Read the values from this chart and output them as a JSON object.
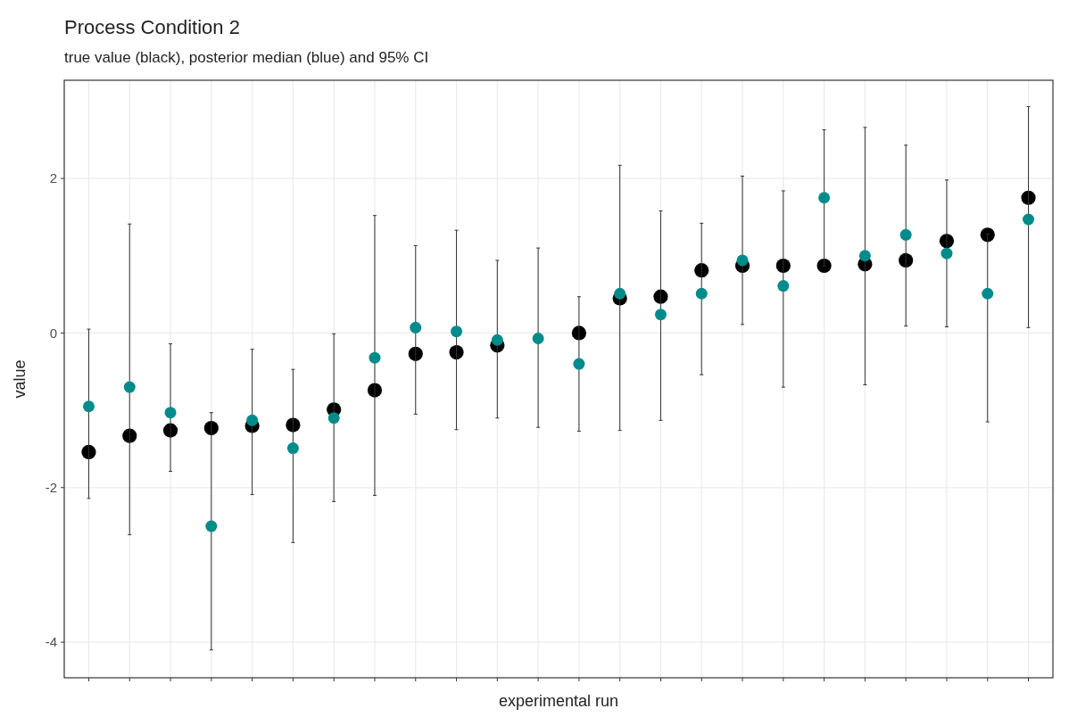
{
  "chart_data": {
    "type": "scatter",
    "title": "Process Condition 2",
    "subtitle": "true value (black), posterior median (blue) and 95% CI",
    "xlabel": "experimental run",
    "ylabel": "value",
    "categories": [
      null,
      null,
      null,
      null,
      null,
      null,
      null,
      null,
      null,
      null,
      null,
      null,
      null,
      null,
      null,
      null,
      null,
      null,
      null,
      null,
      null,
      null,
      null,
      null
    ],
    "ylim": [
      -4.46,
      3.27
    ],
    "yticks": [
      -4,
      -2,
      0,
      2
    ],
    "grid": true,
    "marker": "circle",
    "series": [
      {
        "color": "#000000",
        "values": [
          -1.54,
          -1.33,
          -1.26,
          -1.23,
          -1.2,
          -1.19,
          -0.99,
          -0.74,
          -0.27,
          -0.25,
          -0.16,
          null,
          0.0,
          0.45,
          0.47,
          0.81,
          0.87,
          0.87,
          0.87,
          0.89,
          0.94,
          1.19,
          1.27,
          1.75
        ]
      },
      {
        "color": "#008b8b",
        "values": [
          -0.95,
          -0.7,
          -1.03,
          -2.5,
          -1.13,
          -1.49,
          -1.1,
          -0.32,
          0.07,
          0.02,
          -0.09,
          -0.07,
          -0.4,
          0.51,
          0.24,
          0.51,
          0.94,
          0.61,
          1.75,
          1.0,
          1.27,
          1.03,
          0.51,
          1.47
        ],
        "errors": [
          [
            -2.14,
            0.05
          ],
          [
            -2.61,
            1.41
          ],
          [
            -1.79,
            -0.14
          ],
          [
            -4.1,
            -1.03
          ],
          [
            -2.09,
            -0.21
          ],
          [
            -2.71,
            -0.47
          ],
          [
            -2.18,
            -0.01
          ],
          [
            -2.1,
            1.52
          ],
          [
            -1.05,
            1.13
          ],
          [
            -1.25,
            1.33
          ],
          [
            -1.1,
            0.94
          ],
          [
            -1.22,
            1.1
          ],
          [
            -1.27,
            0.47
          ],
          [
            -1.26,
            2.17
          ],
          [
            -1.13,
            1.58
          ],
          [
            -0.54,
            1.42
          ],
          [
            0.11,
            2.03
          ],
          [
            -0.7,
            1.84
          ],
          [
            0.87,
            2.63
          ],
          [
            -0.67,
            2.66
          ],
          [
            0.09,
            2.43
          ],
          [
            0.08,
            1.98
          ],
          [
            -1.15,
            1.28
          ],
          [
            0.07,
            2.93
          ]
        ]
      }
    ]
  }
}
